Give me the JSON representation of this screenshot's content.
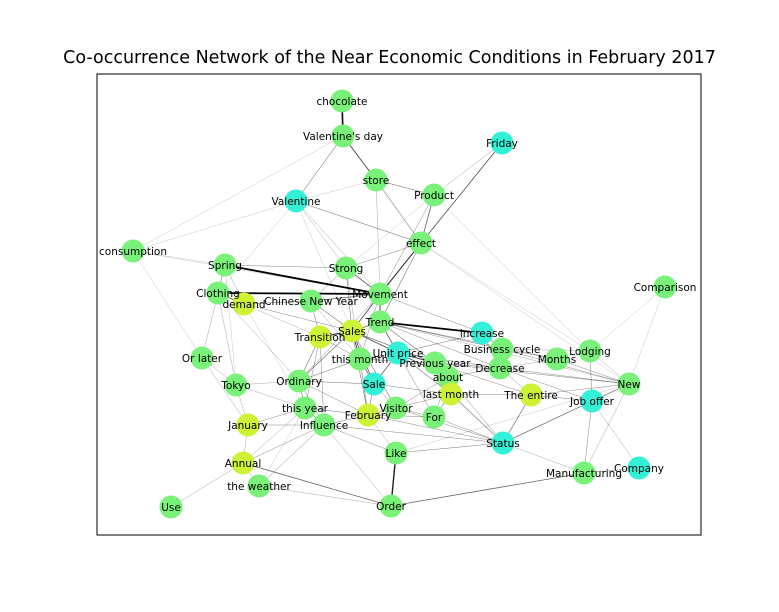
{
  "title": "Co-occurrence Network of the Near Economic Conditions in February 2017",
  "colors": {
    "teal": "#33f0d6",
    "green": "#7af27a",
    "lime": "#cdf236",
    "edge": "#000000",
    "frame": "#000000"
  },
  "nodes": [
    {
      "id": "chocolate",
      "label": "chocolate",
      "c": "green"
    },
    {
      "id": "valentines_day",
      "label": "Valentine's day",
      "c": "green"
    },
    {
      "id": "friday",
      "label": "Friday",
      "c": "teal"
    },
    {
      "id": "store",
      "label": "store",
      "c": "green"
    },
    {
      "id": "product",
      "label": "Product",
      "c": "green"
    },
    {
      "id": "valentine",
      "label": "Valentine",
      "c": "teal"
    },
    {
      "id": "effect",
      "label": "effect",
      "c": "green"
    },
    {
      "id": "consumption",
      "label": "consumption",
      "c": "green"
    },
    {
      "id": "spring",
      "label": "Spring",
      "c": "green"
    },
    {
      "id": "strong",
      "label": "Strong",
      "c": "green"
    },
    {
      "id": "comparison",
      "label": "Comparison",
      "c": "green"
    },
    {
      "id": "clothing",
      "label": "Clothing",
      "c": "green"
    },
    {
      "id": "demand",
      "label": "demand",
      "c": "lime"
    },
    {
      "id": "cny",
      "label": "Chinese New Year",
      "c": "green"
    },
    {
      "id": "movement",
      "label": "Movement",
      "c": "green"
    },
    {
      "id": "trend",
      "label": "Trend",
      "c": "green"
    },
    {
      "id": "increase",
      "label": "increase",
      "c": "teal"
    },
    {
      "id": "sales",
      "label": "Sales",
      "c": "lime"
    },
    {
      "id": "transition",
      "label": "Transition",
      "c": "lime"
    },
    {
      "id": "unit_price",
      "label": "Unit price",
      "c": "teal"
    },
    {
      "id": "business_cycle",
      "label": "Business cycle",
      "c": "green"
    },
    {
      "id": "lodging",
      "label": "Lodging",
      "c": "green"
    },
    {
      "id": "this_month",
      "label": "this month",
      "c": "green"
    },
    {
      "id": "previous_year",
      "label": "Previous year",
      "c": "green"
    },
    {
      "id": "months",
      "label": "Months",
      "c": "green"
    },
    {
      "id": "or_later",
      "label": "Or later",
      "c": "green"
    },
    {
      "id": "decrease",
      "label": "Decrease",
      "c": "green"
    },
    {
      "id": "about",
      "label": "about",
      "c": "green"
    },
    {
      "id": "new",
      "label": "New",
      "c": "green"
    },
    {
      "id": "tokyo",
      "label": "Tokyo",
      "c": "green"
    },
    {
      "id": "ordinary",
      "label": "Ordinary",
      "c": "green"
    },
    {
      "id": "sale",
      "label": "Sale",
      "c": "teal"
    },
    {
      "id": "last_month",
      "label": "last month",
      "c": "lime"
    },
    {
      "id": "the_entire",
      "label": "The entire",
      "c": "lime"
    },
    {
      "id": "job_offer",
      "label": "Job offer",
      "c": "teal"
    },
    {
      "id": "this_year",
      "label": "this year",
      "c": "green"
    },
    {
      "id": "visitor",
      "label": "Visitor",
      "c": "green"
    },
    {
      "id": "february",
      "label": "February",
      "c": "lime"
    },
    {
      "id": "for",
      "label": "For",
      "c": "green"
    },
    {
      "id": "january",
      "label": "January",
      "c": "lime"
    },
    {
      "id": "influence",
      "label": "Influence",
      "c": "green"
    },
    {
      "id": "status",
      "label": "Status",
      "c": "teal"
    },
    {
      "id": "like",
      "label": "Like",
      "c": "green"
    },
    {
      "id": "annual",
      "label": "Annual",
      "c": "lime"
    },
    {
      "id": "company",
      "label": "Company",
      "c": "teal"
    },
    {
      "id": "manufacturing",
      "label": "Manufacturing",
      "c": "green"
    },
    {
      "id": "the_weather",
      "label": "the weather",
      "c": "green"
    },
    {
      "id": "use",
      "label": "Use",
      "c": "green"
    },
    {
      "id": "order",
      "label": "Order",
      "c": "green"
    }
  ],
  "edges": [
    {
      "s": "chocolate",
      "t": "valentines_day",
      "w": 1.6
    },
    {
      "s": "valentines_day",
      "t": "store",
      "w": 1
    },
    {
      "s": "valentines_day",
      "t": "valentine",
      "w": 0.6
    },
    {
      "s": "valentines_day",
      "t": "consumption",
      "w": 0.3
    },
    {
      "s": "store",
      "t": "product",
      "w": 0.6
    },
    {
      "s": "store",
      "t": "effect",
      "w": 0.6
    },
    {
      "s": "store",
      "t": "movement",
      "w": 0.4
    },
    {
      "s": "store",
      "t": "valentine",
      "w": 0.3
    },
    {
      "s": "friday",
      "t": "effect",
      "w": 0.6
    },
    {
      "s": "friday",
      "t": "movement",
      "w": 0.6
    },
    {
      "s": "friday",
      "t": "product",
      "w": 0.4
    },
    {
      "s": "product",
      "t": "effect",
      "w": 0.8
    },
    {
      "s": "product",
      "t": "movement",
      "w": 0.5
    },
    {
      "s": "product",
      "t": "lodging",
      "w": 0.3
    },
    {
      "s": "product",
      "t": "strong",
      "w": 0.3
    },
    {
      "s": "valentine",
      "t": "effect",
      "w": 0.6
    },
    {
      "s": "valentine",
      "t": "strong",
      "w": 0.4
    },
    {
      "s": "valentine",
      "t": "movement",
      "w": 0.4
    },
    {
      "s": "valentine",
      "t": "clothing",
      "w": 0.3
    },
    {
      "s": "valentine",
      "t": "consumption",
      "w": 0.3
    },
    {
      "s": "valentine",
      "t": "sales",
      "w": 0.3
    },
    {
      "s": "effect",
      "t": "movement",
      "w": 1
    },
    {
      "s": "effect",
      "t": "strong",
      "w": 0.5
    },
    {
      "s": "effect",
      "t": "trend",
      "w": 0.6
    },
    {
      "s": "effect",
      "t": "sales",
      "w": 0.5
    },
    {
      "s": "effect",
      "t": "lodging",
      "w": 0.3
    },
    {
      "s": "effect",
      "t": "new",
      "w": 0.3
    },
    {
      "s": "consumption",
      "t": "or_later",
      "w": 0.3
    },
    {
      "s": "consumption",
      "t": "spring",
      "w": 0.3
    },
    {
      "s": "consumption",
      "t": "movement",
      "w": 0.3
    },
    {
      "s": "spring",
      "t": "movement",
      "w": 1.8
    },
    {
      "s": "spring",
      "t": "clothing",
      "w": 0.6
    },
    {
      "s": "spring",
      "t": "demand",
      "w": 0.4
    },
    {
      "s": "spring",
      "t": "strong",
      "w": 0.5
    },
    {
      "s": "spring",
      "t": "tokyo",
      "w": 0.3
    },
    {
      "s": "strong",
      "t": "movement",
      "w": 0.8
    },
    {
      "s": "strong",
      "t": "sales",
      "w": 0.6
    },
    {
      "s": "strong",
      "t": "this_month",
      "w": 0.4
    },
    {
      "s": "strong",
      "t": "cny",
      "w": 0.5
    },
    {
      "s": "comparison",
      "t": "new",
      "w": 0.3
    },
    {
      "s": "comparison",
      "t": "lodging",
      "w": 0.3
    },
    {
      "s": "clothing",
      "t": "movement",
      "w": 1.8
    },
    {
      "s": "clothing",
      "t": "demand",
      "w": 0.8
    },
    {
      "s": "clothing",
      "t": "or_later",
      "w": 0.4
    },
    {
      "s": "clothing",
      "t": "tokyo",
      "w": 0.4
    },
    {
      "s": "clothing",
      "t": "transition",
      "w": 0.4
    },
    {
      "s": "clothing",
      "t": "ordinary",
      "w": 0.4
    },
    {
      "s": "demand",
      "t": "cny",
      "w": 0.6
    },
    {
      "s": "demand",
      "t": "sales",
      "w": 0.5
    },
    {
      "s": "demand",
      "t": "this_year",
      "w": 0.3
    },
    {
      "s": "cny",
      "t": "movement",
      "w": 0.8
    },
    {
      "s": "cny",
      "t": "sales",
      "w": 0.6
    },
    {
      "s": "cny",
      "t": "transition",
      "w": 0.5
    },
    {
      "s": "cny",
      "t": "this_month",
      "w": 0.4
    },
    {
      "s": "movement",
      "t": "trend",
      "w": 1
    },
    {
      "s": "movement",
      "t": "sales",
      "w": 0.8
    },
    {
      "s": "movement",
      "t": "increase",
      "w": 0.5
    },
    {
      "s": "movement",
      "t": "this_month",
      "w": 0.5
    },
    {
      "s": "movement",
      "t": "ordinary",
      "w": 0.5
    },
    {
      "s": "trend",
      "t": "increase",
      "w": 1.8
    },
    {
      "s": "trend",
      "t": "sales",
      "w": 0.8
    },
    {
      "s": "trend",
      "t": "unit_price",
      "w": 0.8
    },
    {
      "s": "trend",
      "t": "previous_year",
      "w": 0.6
    },
    {
      "s": "trend",
      "t": "business_cycle",
      "w": 0.6
    },
    {
      "s": "trend",
      "t": "decrease",
      "w": 0.5
    },
    {
      "s": "trend",
      "t": "months",
      "w": 0.5
    },
    {
      "s": "trend",
      "t": "new",
      "w": 0.4
    },
    {
      "s": "increase",
      "t": "business_cycle",
      "w": 0.6
    },
    {
      "s": "increase",
      "t": "unit_price",
      "w": 0.6
    },
    {
      "s": "increase",
      "t": "decrease",
      "w": 0.5
    },
    {
      "s": "sales",
      "t": "transition",
      "w": 1.2
    },
    {
      "s": "sales",
      "t": "this_month",
      "w": 1
    },
    {
      "s": "sales",
      "t": "unit_price",
      "w": 0.8
    },
    {
      "s": "sales",
      "t": "sale",
      "w": 0.8
    },
    {
      "s": "sales",
      "t": "ordinary",
      "w": 0.7
    },
    {
      "s": "sales",
      "t": "previous_year",
      "w": 0.7
    },
    {
      "s": "sales",
      "t": "february",
      "w": 0.6
    },
    {
      "s": "sales",
      "t": "visitor",
      "w": 0.6
    },
    {
      "s": "sales",
      "t": "about",
      "w": 0.5
    },
    {
      "s": "transition",
      "t": "ordinary",
      "w": 0.6
    },
    {
      "s": "transition",
      "t": "this_year",
      "w": 0.5
    },
    {
      "s": "transition",
      "t": "influence",
      "w": 0.5
    },
    {
      "s": "transition",
      "t": "this_month",
      "w": 0.5
    },
    {
      "s": "unit_price",
      "t": "previous_year",
      "w": 1
    },
    {
      "s": "unit_price",
      "t": "sale",
      "w": 0.8
    },
    {
      "s": "unit_price",
      "t": "about",
      "w": 0.7
    },
    {
      "s": "unit_price",
      "t": "last_month",
      "w": 0.6
    },
    {
      "s": "unit_price",
      "t": "this_month",
      "w": 0.6
    },
    {
      "s": "unit_price",
      "t": "decrease",
      "w": 0.6
    },
    {
      "s": "unit_price",
      "t": "for",
      "w": 0.5
    },
    {
      "s": "business_cycle",
      "t": "decrease",
      "w": 0.6
    },
    {
      "s": "business_cycle",
      "t": "months",
      "w": 0.5
    },
    {
      "s": "business_cycle",
      "t": "new",
      "w": 0.5
    },
    {
      "s": "business_cycle",
      "t": "lodging",
      "w": 0.4
    },
    {
      "s": "lodging",
      "t": "job_offer",
      "w": 0.5
    },
    {
      "s": "lodging",
      "t": "new",
      "w": 0.4
    },
    {
      "s": "lodging",
      "t": "months",
      "w": 0.3
    },
    {
      "s": "this_month",
      "t": "sale",
      "w": 0.8
    },
    {
      "s": "this_month",
      "t": "february",
      "w": 0.6
    },
    {
      "s": "this_month",
      "t": "ordinary",
      "w": 0.6
    },
    {
      "s": "this_month",
      "t": "previous_year",
      "w": 0.6
    },
    {
      "s": "previous_year",
      "t": "about",
      "w": 0.8
    },
    {
      "s": "previous_year",
      "t": "last_month",
      "w": 0.6
    },
    {
      "s": "previous_year",
      "t": "decrease",
      "w": 0.6
    },
    {
      "s": "previous_year",
      "t": "the_entire",
      "w": 0.5
    },
    {
      "s": "previous_year",
      "t": "new",
      "w": 0.5
    },
    {
      "s": "months",
      "t": "new",
      "w": 0.5
    },
    {
      "s": "months",
      "t": "decrease",
      "w": 0.4
    },
    {
      "s": "or_later",
      "t": "tokyo",
      "w": 0.4
    },
    {
      "s": "or_later",
      "t": "january",
      "w": 0.4
    },
    {
      "s": "decrease",
      "t": "about",
      "w": 0.5
    },
    {
      "s": "decrease",
      "t": "the_entire",
      "w": 0.5
    },
    {
      "s": "decrease",
      "t": "job_offer",
      "w": 0.5
    },
    {
      "s": "decrease",
      "t": "new",
      "w": 0.5
    },
    {
      "s": "about",
      "t": "last_month",
      "w": 0.8
    },
    {
      "s": "about",
      "t": "for",
      "w": 0.5
    },
    {
      "s": "about",
      "t": "visitor",
      "w": 0.5
    },
    {
      "s": "about",
      "t": "status",
      "w": 0.5
    },
    {
      "s": "new",
      "t": "job_offer",
      "w": 0.6
    },
    {
      "s": "new",
      "t": "the_entire",
      "w": 0.5
    },
    {
      "s": "new",
      "t": "manufacturing",
      "w": 0.4
    },
    {
      "s": "new",
      "t": "status",
      "w": 0.4
    },
    {
      "s": "new",
      "t": "like",
      "w": 0.3
    },
    {
      "s": "tokyo",
      "t": "ordinary",
      "w": 0.4
    },
    {
      "s": "tokyo",
      "t": "january",
      "w": 0.4
    },
    {
      "s": "tokyo",
      "t": "this_year",
      "w": 0.4
    },
    {
      "s": "ordinary",
      "t": "this_year",
      "w": 0.6
    },
    {
      "s": "ordinary",
      "t": "sale",
      "w": 0.6
    },
    {
      "s": "ordinary",
      "t": "influence",
      "w": 0.5
    },
    {
      "s": "ordinary",
      "t": "february",
      "w": 0.5
    },
    {
      "s": "sale",
      "t": "february",
      "w": 0.6
    },
    {
      "s": "sale",
      "t": "visitor",
      "w": 0.5
    },
    {
      "s": "sale",
      "t": "last_month",
      "w": 0.5
    },
    {
      "s": "last_month",
      "t": "for",
      "w": 0.6
    },
    {
      "s": "last_month",
      "t": "the_entire",
      "w": 0.5
    },
    {
      "s": "last_month",
      "t": "status",
      "w": 0.6
    },
    {
      "s": "last_month",
      "t": "visitor",
      "w": 0.5
    },
    {
      "s": "the_entire",
      "t": "job_offer",
      "w": 0.6
    },
    {
      "s": "the_entire",
      "t": "status",
      "w": 0.7
    },
    {
      "s": "job_offer",
      "t": "status",
      "w": 0.6
    },
    {
      "s": "job_offer",
      "t": "manufacturing",
      "w": 0.5
    },
    {
      "s": "job_offer",
      "t": "company",
      "w": 0.4
    },
    {
      "s": "this_year",
      "t": "february",
      "w": 0.6
    },
    {
      "s": "this_year",
      "t": "influence",
      "w": 0.6
    },
    {
      "s": "this_year",
      "t": "january",
      "w": 0.5
    },
    {
      "s": "this_year",
      "t": "annual",
      "w": 0.4
    },
    {
      "s": "this_year",
      "t": "the_weather",
      "w": 0.3
    },
    {
      "s": "visitor",
      "t": "february",
      "w": 0.6
    },
    {
      "s": "visitor",
      "t": "for",
      "w": 0.5
    },
    {
      "s": "visitor",
      "t": "status",
      "w": 0.5
    },
    {
      "s": "february",
      "t": "influence",
      "w": 0.6
    },
    {
      "s": "february",
      "t": "for",
      "w": 0.5
    },
    {
      "s": "february",
      "t": "status",
      "w": 0.5
    },
    {
      "s": "february",
      "t": "like",
      "w": 0.4
    },
    {
      "s": "for",
      "t": "status",
      "w": 0.5
    },
    {
      "s": "january",
      "t": "influence",
      "w": 0.5
    },
    {
      "s": "january",
      "t": "annual",
      "w": 0.4
    },
    {
      "s": "influence",
      "t": "annual",
      "w": 0.5
    },
    {
      "s": "influence",
      "t": "the_weather",
      "w": 0.5
    },
    {
      "s": "influence",
      "t": "status",
      "w": 0.5
    },
    {
      "s": "influence",
      "t": "like",
      "w": 0.5
    },
    {
      "s": "influence",
      "t": "order",
      "w": 0.4
    },
    {
      "s": "status",
      "t": "like",
      "w": 0.6
    },
    {
      "s": "status",
      "t": "manufacturing",
      "w": 0.4
    },
    {
      "s": "like",
      "t": "order",
      "w": 1.4
    },
    {
      "s": "manufacturing",
      "t": "order",
      "w": 0.8
    },
    {
      "s": "manufacturing",
      "t": "company",
      "w": 0.5
    },
    {
      "s": "annual",
      "t": "use",
      "w": 0.4
    },
    {
      "s": "annual",
      "t": "order",
      "w": 0.8
    },
    {
      "s": "annual",
      "t": "the_weather",
      "w": 0.4
    },
    {
      "s": "the_weather",
      "t": "order",
      "w": 0.4
    }
  ]
}
